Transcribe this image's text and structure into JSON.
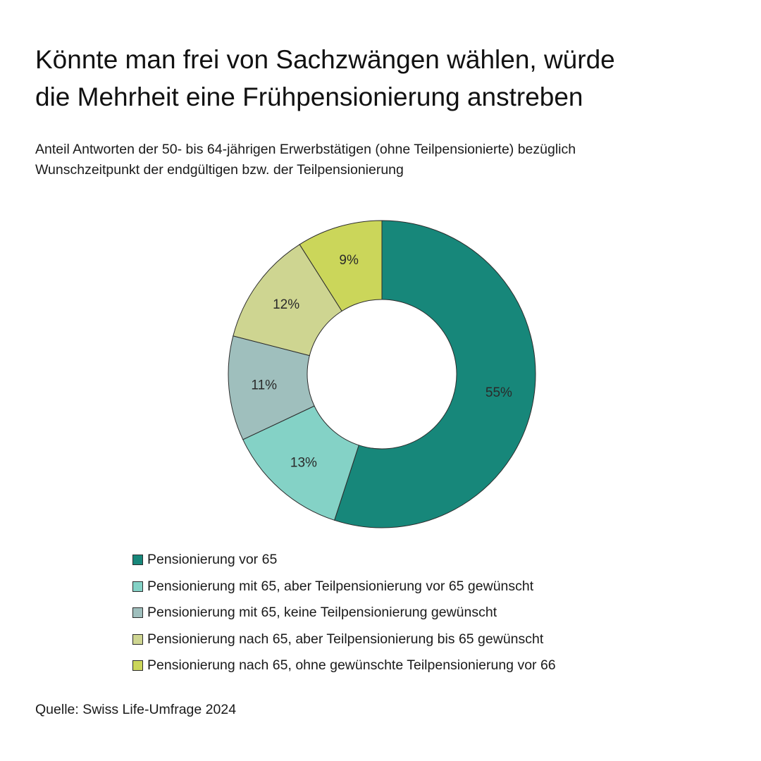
{
  "title": {
    "line1": "Könnte man frei von Sachzwängen wählen, würde",
    "line2": "die Mehrheit eine Frühpensionierung anstreben"
  },
  "subtitle": {
    "line1": "Anteil Antworten der 50- bis 64-jährigen Erwerbstätigen (ohne Teilpensionierte) bezüglich",
    "line2": "Wunschzeitpunkt der endgültigen bzw. der Teilpensionierung"
  },
  "source": "Quelle: Swiss Life-Umfrage 2024",
  "chart_data": {
    "type": "pie",
    "variant": "donut",
    "start_position": "top",
    "direction": "clockwise",
    "unit": "%",
    "legend_position": "bottom",
    "slices": [
      {
        "label": "Pensionierung vor 65",
        "value": 55,
        "value_label": "55%",
        "color": "#17877a"
      },
      {
        "label": "Pensionierung mit 65, aber Teilpensionierung vor 65 gewünscht",
        "value": 13,
        "value_label": "13%",
        "color": "#84d2c6"
      },
      {
        "label": "Pensionierung mit 65, keine Teilpensionierung gewünscht",
        "value": 11,
        "value_label": "11%",
        "color": "#9fbfbd"
      },
      {
        "label": "Pensionierung nach 65, aber Teilpensionierung bis 65 gewünscht",
        "value": 12,
        "value_label": "12%",
        "color": "#ced591"
      },
      {
        "label": "Pensionierung nach 65, ohne gewünschte Teilpensionierung vor 66",
        "value": 9,
        "value_label": "9%",
        "color": "#cbd65a"
      }
    ]
  }
}
